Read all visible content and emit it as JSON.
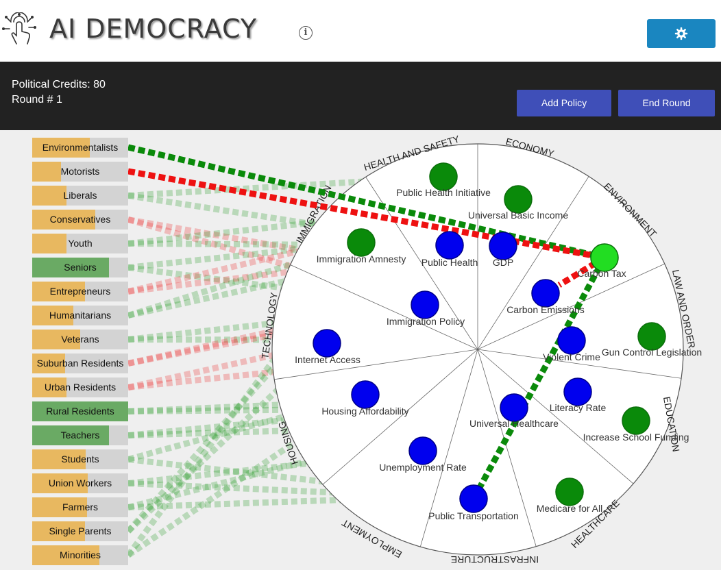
{
  "header": {
    "title": "AI DEMOCRACY",
    "logo_icon": "touch-hand-icon",
    "info_icon": "info-icon",
    "settings_icon": "gear-icon",
    "accent": "#1a86c0"
  },
  "status": {
    "credits": "Political Credits: 80",
    "round": "Round # 1"
  },
  "buttons": {
    "add_policy": "Add Policy",
    "end_round": "End Round",
    "color": "#3f4fb8"
  },
  "colors": {
    "support": "#2e9e2e",
    "oppose": "#ee3333",
    "policy": "#0a8a0a",
    "variable": "#0000ee",
    "selected_policy": "#22dd22",
    "voter_bar": "#e8b860",
    "voter_bar_happy": "#6aaa64"
  },
  "voter_groups": [
    {
      "name": "Environmentalists",
      "level": 0.6,
      "happy": false
    },
    {
      "name": "Motorists",
      "level": 0.3,
      "happy": false
    },
    {
      "name": "Liberals",
      "level": 0.36,
      "happy": false
    },
    {
      "name": "Conservatives",
      "level": 0.66,
      "happy": false
    },
    {
      "name": "Youth",
      "level": 0.36,
      "happy": false
    },
    {
      "name": "Seniors",
      "level": 0.8,
      "happy": true
    },
    {
      "name": "Entrepreneurs",
      "level": 0.55,
      "happy": false
    },
    {
      "name": "Humanitarians",
      "level": 0.43,
      "happy": false
    },
    {
      "name": "Veterans",
      "level": 0.5,
      "happy": false
    },
    {
      "name": "Suburban Residents",
      "level": 0.34,
      "happy": false
    },
    {
      "name": "Urban Residents",
      "level": 0.36,
      "happy": false
    },
    {
      "name": "Rural Residents",
      "level": 1.0,
      "happy": true
    },
    {
      "name": "Teachers",
      "level": 0.8,
      "happy": true
    },
    {
      "name": "Students",
      "level": 0.56,
      "happy": false
    },
    {
      "name": "Union Workers",
      "level": 0.58,
      "happy": false
    },
    {
      "name": "Farmers",
      "level": 0.57,
      "happy": false
    },
    {
      "name": "Single Parents",
      "level": 0.55,
      "happy": false
    },
    {
      "name": "Minorities",
      "level": 0.7,
      "happy": false
    }
  ],
  "categories": [
    "HEALTH AND SAFETY",
    "ECONOMY",
    "ENVIRONMENT",
    "LAW AND ORDER",
    "EDUCATION",
    "HEALTHCARE",
    "INFRASTRUCTURE",
    "EMPLOYMENT",
    "HOUSING",
    "TECHNOLOGY",
    "IMMIGRATION"
  ],
  "nodes": [
    {
      "name": "Public Health Initiative",
      "kind": "policy"
    },
    {
      "name": "Universal Basic Income",
      "kind": "policy"
    },
    {
      "name": "Immigration Amnesty",
      "kind": "policy"
    },
    {
      "name": "Public Health",
      "kind": "variable"
    },
    {
      "name": "GDP",
      "kind": "variable"
    },
    {
      "name": "Carbon Tax",
      "kind": "policy",
      "selected": true
    },
    {
      "name": "Carbon Emissions",
      "kind": "variable"
    },
    {
      "name": "Immigration Policy",
      "kind": "variable"
    },
    {
      "name": "Gun Control Legislation",
      "kind": "policy"
    },
    {
      "name": "Internet Access",
      "kind": "variable"
    },
    {
      "name": "Violent Crime",
      "kind": "variable"
    },
    {
      "name": "Housing Affordability",
      "kind": "variable"
    },
    {
      "name": "Literacy Rate",
      "kind": "variable"
    },
    {
      "name": "Universal Healthcare",
      "kind": "variable"
    },
    {
      "name": "Increase School Funding",
      "kind": "policy"
    },
    {
      "name": "Unemployment Rate",
      "kind": "variable"
    },
    {
      "name": "Medicare for All",
      "kind": "policy"
    },
    {
      "name": "Public Transportation",
      "kind": "variable"
    }
  ]
}
